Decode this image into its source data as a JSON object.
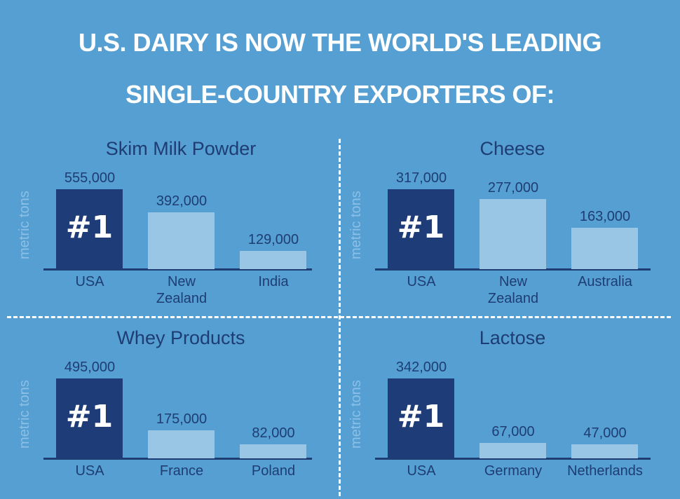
{
  "headline": {
    "line1": "U.S. DAIRY IS NOW THE WORLD'S LEADING",
    "line2": "SINGLE-COUNTRY EXPORTERS OF:"
  },
  "colors": {
    "background": "#559fd3",
    "usa_bar": "#1e3d78",
    "other_bar": "#9ac6e6",
    "text": "#1e3d73"
  },
  "chart_data": [
    {
      "type": "bar",
      "title": "Skim Milk Powder",
      "ylabel": "metric tons",
      "categories": [
        "USA",
        "New Zealand",
        "India"
      ],
      "values": [
        555000,
        392000,
        129000
      ],
      "value_labels": [
        "555,000",
        "392,000",
        "129,000"
      ],
      "highlight_label": "#1",
      "grid": false
    },
    {
      "type": "bar",
      "title": "Cheese",
      "ylabel": "metric tons",
      "categories": [
        "USA",
        "New Zealand",
        "Australia"
      ],
      "values": [
        317000,
        277000,
        163000
      ],
      "value_labels": [
        "317,000",
        "277,000",
        "163,000"
      ],
      "highlight_label": "#1",
      "grid": false
    },
    {
      "type": "bar",
      "title": "Whey Products",
      "ylabel": "metric tons",
      "categories": [
        "USA",
        "France",
        "Poland"
      ],
      "values": [
        495000,
        175000,
        82000
      ],
      "value_labels": [
        "495,000",
        "175,000",
        "82,000"
      ],
      "highlight_label": "#1",
      "grid": false
    },
    {
      "type": "bar",
      "title": "Lactose",
      "ylabel": "metric tons",
      "categories": [
        "USA",
        "Germany",
        "Netherlands"
      ],
      "values": [
        342000,
        67000,
        47000
      ],
      "value_labels": [
        "342,000",
        "67,000",
        "47,000"
      ],
      "highlight_label": "#1",
      "grid": false
    }
  ]
}
